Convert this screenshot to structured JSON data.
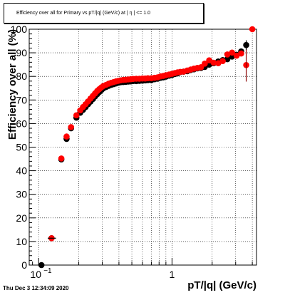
{
  "footer": {
    "timestamp": "Thu Dec  3 12:34:09 2020"
  },
  "chart_data": {
    "type": "scatter",
    "title": "Efficiency over all for Primary vs pT/|q| (GeV/c) at | η | <= 1.0",
    "xlabel": "pT/|q| (GeV/c)",
    "ylabel": "Efficiency over all (%)",
    "xscale": "log",
    "xlim": [
      0.085,
      4.3
    ],
    "ylim": [
      0,
      100
    ],
    "grid": true,
    "x_ticklabels": [
      {
        "value": 0.1,
        "base": "10",
        "exp": "−1"
      },
      {
        "value": 1,
        "base": "1",
        "exp": ""
      }
    ],
    "y_ticks": [
      0,
      10,
      20,
      30,
      40,
      50,
      60,
      70,
      80,
      90,
      100
    ],
    "colors": {
      "series_black": "#000000",
      "series_red": "#ff0000"
    },
    "series": [
      {
        "color": "#000000",
        "points": [
          [
            0.105,
            0.0
          ],
          [
            0.125,
            11.4
          ],
          [
            0.148,
            44.8
          ],
          [
            0.162,
            53.5
          ],
          [
            0.175,
            58.0
          ],
          [
            0.192,
            62.5
          ],
          [
            0.205,
            64.6
          ],
          [
            0.215,
            65.8
          ],
          [
            0.225,
            67.0
          ],
          [
            0.235,
            68.2
          ],
          [
            0.245,
            69.3
          ],
          [
            0.255,
            70.4
          ],
          [
            0.265,
            71.5
          ],
          [
            0.275,
            72.5
          ],
          [
            0.285,
            73.4
          ],
          [
            0.295,
            74.2
          ],
          [
            0.305,
            74.9
          ],
          [
            0.32,
            75.5
          ],
          [
            0.335,
            76.0
          ],
          [
            0.35,
            76.4
          ],
          [
            0.365,
            76.7
          ],
          [
            0.38,
            77.0
          ],
          [
            0.395,
            77.3
          ],
          [
            0.41,
            77.5
          ],
          [
            0.43,
            77.6
          ],
          [
            0.45,
            77.7
          ],
          [
            0.47,
            77.8
          ],
          [
            0.49,
            77.9
          ],
          [
            0.51,
            78.0
          ],
          [
            0.54,
            78.0
          ],
          [
            0.57,
            78.1
          ],
          [
            0.6,
            78.2
          ],
          [
            0.63,
            78.3
          ],
          [
            0.66,
            78.4
          ],
          [
            0.7,
            78.4
          ],
          [
            0.74,
            78.8
          ],
          [
            0.78,
            79.0
          ],
          [
            0.82,
            79.4
          ],
          [
            0.86,
            79.6
          ],
          [
            0.9,
            79.9
          ],
          [
            0.95,
            80.3
          ],
          [
            1.0,
            80.6
          ],
          [
            1.05,
            81.0
          ],
          [
            1.1,
            81.3
          ],
          [
            1.15,
            81.8
          ],
          [
            1.22,
            82.0
          ],
          [
            1.3,
            82.2
          ],
          [
            1.38,
            82.7
          ],
          [
            1.46,
            83.0
          ],
          [
            1.55,
            83.4
          ],
          [
            1.65,
            83.6
          ],
          [
            1.76,
            84.0
          ],
          [
            1.9,
            85.0
          ],
          [
            2.05,
            85.6
          ],
          [
            2.22,
            86.3
          ],
          [
            2.4,
            86.9
          ],
          [
            2.6,
            87.3
          ],
          [
            2.82,
            88.4
          ],
          [
            3.05,
            89.2
          ],
          [
            3.3,
            90.6
          ],
          [
            3.6,
            93.3
          ]
        ]
      },
      {
        "color": "#ff0000",
        "points": [
          [
            0.125,
            11.4
          ],
          [
            0.148,
            45.2
          ],
          [
            0.162,
            54.5
          ],
          [
            0.175,
            58.5
          ],
          [
            0.192,
            63.5
          ],
          [
            0.205,
            65.6
          ],
          [
            0.215,
            67.0
          ],
          [
            0.225,
            68.2
          ],
          [
            0.235,
            69.4
          ],
          [
            0.245,
            70.6
          ],
          [
            0.255,
            71.7
          ],
          [
            0.265,
            72.8
          ],
          [
            0.275,
            73.8
          ],
          [
            0.285,
            74.6
          ],
          [
            0.295,
            75.3
          ],
          [
            0.305,
            75.9
          ],
          [
            0.32,
            76.4
          ],
          [
            0.335,
            76.9
          ],
          [
            0.35,
            77.3
          ],
          [
            0.365,
            77.6
          ],
          [
            0.38,
            77.9
          ],
          [
            0.395,
            78.1
          ],
          [
            0.41,
            78.3
          ],
          [
            0.43,
            78.5
          ],
          [
            0.45,
            78.6
          ],
          [
            0.47,
            78.7
          ],
          [
            0.49,
            78.8
          ],
          [
            0.51,
            78.9
          ],
          [
            0.54,
            79.0
          ],
          [
            0.57,
            79.0
          ],
          [
            0.6,
            79.1
          ],
          [
            0.63,
            79.1
          ],
          [
            0.66,
            79.2
          ],
          [
            0.7,
            79.2
          ],
          [
            0.74,
            79.4
          ],
          [
            0.78,
            79.6
          ],
          [
            0.82,
            80.0
          ],
          [
            0.86,
            80.2
          ],
          [
            0.9,
            80.5
          ],
          [
            0.95,
            80.8
          ],
          [
            1.0,
            81.1
          ],
          [
            1.05,
            81.4
          ],
          [
            1.1,
            81.7
          ],
          [
            1.15,
            81.9
          ],
          [
            1.22,
            82.0
          ],
          [
            1.3,
            82.5
          ],
          [
            1.38,
            82.9
          ],
          [
            1.46,
            83.3
          ],
          [
            1.55,
            83.6
          ],
          [
            1.65,
            83.9
          ],
          [
            1.76,
            85.4
          ],
          [
            1.9,
            86.8
          ],
          [
            2.05,
            85.8
          ],
          [
            2.22,
            85.6
          ],
          [
            2.4,
            86.5
          ],
          [
            2.6,
            89.3
          ],
          [
            2.82,
            90.1
          ],
          [
            3.05,
            88.8
          ],
          [
            3.3,
            89.7
          ],
          [
            3.6,
            84.8
          ],
          [
            4.0,
            100.0
          ]
        ]
      }
    ]
  }
}
